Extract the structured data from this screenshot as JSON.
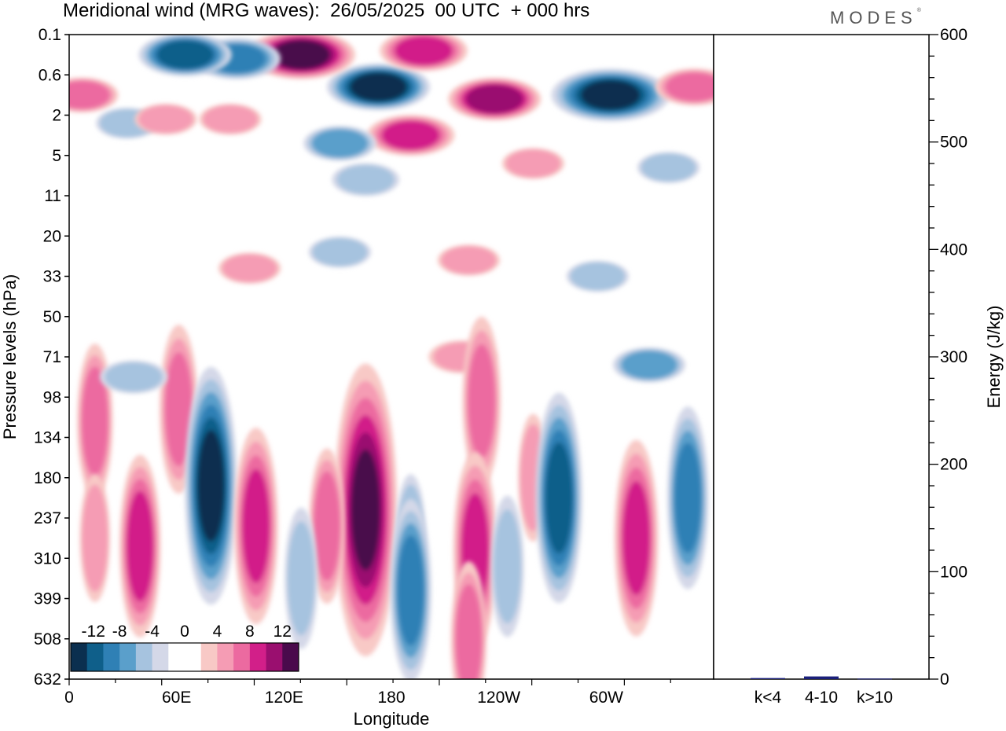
{
  "header": {
    "title": "Meridional wind (MRG waves):  26/05/2025  00 UTC  + 000 hrs",
    "brand": "MODES"
  },
  "colors": {
    "negative": [
      "#0b2f4f",
      "#0f5f8a",
      "#2f80b5",
      "#5a9fcb",
      "#a6c3df",
      "#d4d8e8"
    ],
    "zero": "#ffffff",
    "positive": [
      "#f8c9c6",
      "#f59cb4",
      "#ec6aa0",
      "#d21f89",
      "#9a0f6f",
      "#4a0a4c"
    ],
    "bar": "#1a1f7a"
  },
  "chart_data": [
    {
      "type": "heatmap",
      "title": "Meridional wind (MRG waves):  26/05/2025  00 UTC  + 000 hrs",
      "xlabel": "Longitude",
      "ylabel": "Pressure levels (hPa)",
      "x_ticks": [
        "0",
        "60E",
        "120E",
        "180",
        "120W",
        "60W"
      ],
      "y_ticks": [
        "0.1",
        "0.6",
        "2",
        "5",
        "11",
        "20",
        "33",
        "50",
        "71",
        "98",
        "134",
        "180",
        "237",
        "310",
        "399",
        "508",
        "632"
      ],
      "colorbar_labels": [
        "-12",
        "-8",
        "-4",
        "0",
        "4",
        "8",
        "12"
      ],
      "features": [
        {
          "lon": 0.48,
          "lev": 1.3,
          "v": -11
        },
        {
          "lon": 0.36,
          "lev": 0.5,
          "v": 12
        },
        {
          "lon": 0.26,
          "lev": 0.6,
          "v": -8
        },
        {
          "lon": 0.18,
          "lev": 0.5,
          "v": -9
        },
        {
          "lon": 0.55,
          "lev": 0.4,
          "v": 8
        },
        {
          "lon": 0.66,
          "lev": 1.6,
          "v": 9
        },
        {
          "lon": 0.53,
          "lev": 2.5,
          "v": 8
        },
        {
          "lon": 0.84,
          "lev": 1.5,
          "v": -14
        },
        {
          "lon": 0.02,
          "lev": 1.5,
          "v": 5
        },
        {
          "lon": 0.97,
          "lev": 1.3,
          "v": 6
        },
        {
          "lon": 0.09,
          "lev": 2.2,
          "v": -3
        },
        {
          "lon": 0.15,
          "lev": 2.1,
          "v": 3
        },
        {
          "lon": 0.25,
          "lev": 2.1,
          "v": 3
        },
        {
          "lon": 0.42,
          "lev": 2.7,
          "v": -5
        },
        {
          "lon": 0.46,
          "lev": 3.6,
          "v": -4
        },
        {
          "lon": 0.72,
          "lev": 3.2,
          "v": 3
        },
        {
          "lon": 0.93,
          "lev": 3.3,
          "v": -3
        },
        {
          "lon": 0.62,
          "lev": 5.6,
          "v": 3
        },
        {
          "lon": 0.42,
          "lev": 5.4,
          "v": -3
        },
        {
          "lon": 0.28,
          "lev": 5.8,
          "v": 3
        },
        {
          "lon": 0.82,
          "lev": 6.0,
          "v": -3
        },
        {
          "lon": 0.61,
          "lev": 8.0,
          "v": 4
        },
        {
          "lon": 0.64,
          "lev": 9.1,
          "v": 6
        },
        {
          "lon": 0.04,
          "lev": 9.6,
          "v": 5
        },
        {
          "lon": 0.17,
          "lev": 9.3,
          "v": 6
        },
        {
          "lon": 0.1,
          "lev": 8.5,
          "v": -4
        },
        {
          "lon": 0.9,
          "lev": 8.2,
          "v": -5
        },
        {
          "lon": 0.22,
          "lev": 11.2,
          "v": -11
        },
        {
          "lon": 0.29,
          "lev": 12.2,
          "v": 8
        },
        {
          "lon": 0.46,
          "lev": 11.8,
          "v": 15
        },
        {
          "lon": 0.4,
          "lev": 12.2,
          "v": 5
        },
        {
          "lon": 0.53,
          "lev": 12.5,
          "v": -3
        },
        {
          "lon": 0.53,
          "lev": 13.8,
          "v": -7
        },
        {
          "lon": 0.63,
          "lev": 12.8,
          "v": 8
        },
        {
          "lon": 0.72,
          "lev": 11.0,
          "v": 3
        },
        {
          "lon": 0.76,
          "lev": 11.5,
          "v": -9
        },
        {
          "lon": 0.88,
          "lev": 12.5,
          "v": 8
        },
        {
          "lon": 0.96,
          "lev": 11.5,
          "v": -7
        },
        {
          "lon": 0.11,
          "lev": 12.7,
          "v": 7
        },
        {
          "lon": 0.04,
          "lev": 12.5,
          "v": 3
        },
        {
          "lon": 0.68,
          "lev": 13.2,
          "v": -4
        },
        {
          "lon": 0.62,
          "lev": 15.0,
          "v": 5
        },
        {
          "lon": 0.36,
          "lev": 13.5,
          "v": -4
        }
      ]
    },
    {
      "type": "bar",
      "categories": [
        "k<4",
        "4-10",
        "k>10"
      ],
      "values": [
        1,
        2.5,
        0.5
      ],
      "ylabel": "Energy (J/kg)",
      "ylim": [
        0,
        600
      ],
      "y_ticks": [
        "0",
        "100",
        "200",
        "300",
        "400",
        "500",
        "600"
      ]
    }
  ]
}
